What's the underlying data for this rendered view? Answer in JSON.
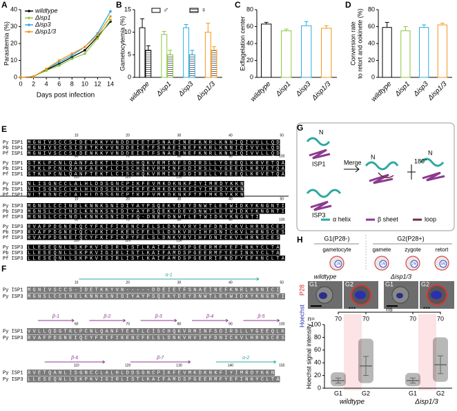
{
  "chart_data": [
    {
      "type": "line",
      "panel": "A",
      "xlabel": "Days post infection",
      "ylabel": "Parasitemia (%)",
      "x": [
        0,
        2,
        4,
        6,
        8,
        10,
        12,
        14
      ],
      "xlim": [
        0,
        14
      ],
      "xticks": [
        0,
        2,
        4,
        6,
        8,
        10,
        12,
        14
      ],
      "ylim": [
        0,
        40
      ],
      "yticks": [
        0,
        10,
        20,
        30,
        40
      ],
      "legend": "upper-left",
      "series": [
        {
          "name": "wildtype",
          "color": "#000000",
          "values": [
            0,
            0.5,
            4.5,
            8,
            12,
            16,
            24,
            33
          ]
        },
        {
          "name": "Δisp1",
          "color": "#8cc63f",
          "values": [
            0,
            0.5,
            4,
            7,
            11,
            14,
            23,
            34
          ]
        },
        {
          "name": "Δisp3",
          "color": "#29abe2",
          "values": [
            0,
            0.5,
            5,
            9,
            13,
            18,
            26,
            39
          ]
        },
        {
          "name": "Δisp1/3",
          "color": "#f7941d",
          "values": [
            0,
            0.5,
            5,
            10,
            14,
            18,
            25,
            36
          ]
        }
      ]
    },
    {
      "type": "bar",
      "panel": "B",
      "ylabel": "Gametocytemia (%)",
      "categories": [
        "wildtype",
        "Δisp1",
        "Δisp3",
        "Δisp1/3"
      ],
      "category_colors": [
        "#000000",
        "#8cc63f",
        "#29abe2",
        "#f7941d"
      ],
      "ylim": [
        0,
        15
      ],
      "yticks": [
        0,
        5,
        10,
        15
      ],
      "series": [
        {
          "name": "♂",
          "values": [
            11,
            9.5,
            11,
            10
          ],
          "errors": [
            2,
            0.7,
            0.7,
            2
          ]
        },
        {
          "name": "♀",
          "values": [
            6,
            5,
            5,
            6
          ],
          "errors": [
            1,
            1,
            1,
            0.8
          ],
          "hatch": true
        }
      ]
    },
    {
      "type": "bar",
      "panel": "C",
      "ylabel": "Exflagelation center",
      "categories": [
        "wildtype",
        "Δisp1",
        "Δisp3",
        "Δisp1/3"
      ],
      "category_colors": [
        "#000000",
        "#8cc63f",
        "#29abe2",
        "#f7941d"
      ],
      "ylim": [
        0,
        80
      ],
      "yticks": [
        0,
        20,
        40,
        60,
        80
      ],
      "values": [
        63,
        55,
        61,
        58
      ],
      "errors": [
        2,
        2,
        5,
        3
      ]
    },
    {
      "type": "bar",
      "panel": "D",
      "ylabel": [
        "Conversion rate",
        "to retort and ookinete (%)"
      ],
      "categories": [
        "wildtype",
        "Δisp1",
        "Δisp3",
        "Δisp1/3"
      ],
      "category_colors": [
        "#000000",
        "#8cc63f",
        "#29abe2",
        "#f7941d"
      ],
      "ylim": [
        0,
        80
      ],
      "yticks": [
        0,
        20,
        40,
        60,
        80
      ],
      "values": [
        59,
        55,
        59,
        62
      ],
      "errors": [
        6,
        5,
        3,
        2
      ]
    },
    {
      "type": "dot",
      "ylabel": "Hoechst signal intensity",
      "categories": [
        "G1",
        "G2",
        "G1",
        "G2"
      ],
      "groups": [
        "wildtype",
        "Δisp1/3"
      ],
      "n_label": "n=",
      "n": [
        70,
        70,
        70,
        70
      ],
      "values": [
        12,
        35,
        12,
        37
      ],
      "errors": [
        4,
        15,
        4,
        14
      ],
      "ranges": [
        [
          3,
          25
        ],
        [
          8,
          78
        ],
        [
          3,
          24
        ],
        [
          10,
          80
        ]
      ],
      "ylim": [
        0,
        100
      ],
      "yticks": [
        0,
        20,
        40,
        60,
        80,
        100
      ],
      "comparisons": [
        "***",
        "ns",
        "***"
      ]
    }
  ],
  "alignment_E": {
    "panel": "E",
    "blocks": [
      {
        "ruler": [
          10,
          20,
          30,
          40,
          50
        ],
        "rows": [
          {
            "name": "Py ISP1",
            "seq": "MGNIVSCCSIDETKKYVNDDEIETFSNAEINEFKNRLKNNIQIVVLLQD"
          },
          {
            "name": "Pb ISP1",
            "seq": "MGNIVSCCSIDETKKYVNDDEIETFSNAEINEFKKRLKNNIQIVVLLQD"
          },
          {
            "name": "Pf ISP1",
            "seq": "MGNIVSCCSIDENKKYVNDDEIETFSNAEINEFKNRLKNNIQIVVLLQD"
          }
        ]
      },
      {
        "ruler": [
          60,
          70,
          80,
          90,
          100
        ],
        "rows": [
          {
            "name": "Py ISP1",
            "seq": "GTKLPCNLQANFAEKTLCISCHQKVRMINFSDIRSLLYGEEQLKRVETQA"
          },
          {
            "name": "Pb ISP1",
            "seq": "GTKLPCNLQANFAEKTLCISCHQKVRMINFSDIRSLLYGEEQLKRVETQA"
          },
          {
            "name": "Pf ISP1",
            "seq": "GTKLPCNLQANFTEKTLCISCHQKVRMINFSDIRSLLYGEEQLKRVETQA"
          }
        ]
      },
      {
        "ruler": [
          110,
          120,
          130
        ],
        "rows": [
          {
            "name": "Py ISP1",
            "seq": "NLISGNCCLALHLDDSGNCPIKFEVMKDKNKFIYIMRDYKKN"
          },
          {
            "name": "Pb ISP1",
            "seq": "NLISGNCCLALHLDDSGNCPIKFEAMKDKNKFIYIMRDYKKN"
          },
          {
            "name": "Pf ISP1",
            "seq": "NLINDNCCLALHLDDSGNCPIKFEVMKDKNKFIFIMKDYKKN"
          }
        ]
      },
      {
        "ruler": [
          10,
          20,
          30,
          40,
          50
        ],
        "rows": [
          {
            "name": "Py ISP3",
            "seq": "MGNSLCCINDLKNNKSNIDIYAYPSQEKYDEYDNWTLETWIDKYKNGNTI"
          },
          {
            "name": "Pb ISP3",
            "seq": "MGNSLCCINDLKNNKSNIDIYAYPSQEKYDEYDNWTLETWIDKYKNGNTI"
          },
          {
            "name": "Pf ISP3",
            "seq": "MGNSLCCINDLKNNKSNIDIFQ-DNEYDNWTLETWIDKYKNGNTI"
          }
        ]
      },
      {
        "ruler": [
          60,
          70,
          80,
          90,
          100
        ],
        "rows": [
          {
            "name": "Py ISP3",
            "seq": "RVAFPDGNEIQCYFKIFIKENCFELSLDNKVRVIHFDNICKVLHRNSCES"
          },
          {
            "name": "Pb ISP3",
            "seq": "RVAFPDGNEIQCYFKIFIKENCFELSLDNKVRVIHFDNICKVLHRNSCES"
          },
          {
            "name": "Pf ISP3",
            "seq": "RVAFPDGNEIQCYFKIFIKEYFELSLDNKVRVIHFDNICKVLHRNSCES"
          }
        ]
      },
      {
        "ruler": [
          110,
          120,
          130
        ],
        "rows": [
          {
            "name": "Py ISP3",
            "seq": "LLESEQNLLSKPKVIGIRLISTLKAIFAMDSPGEERMFYEFINKYCLTA"
          },
          {
            "name": "Pb ISP3",
            "seq": "LLESEQNLLSKPKVIGIRLISTLKAIFAMDSPGEERMFYEFINKYCLTA"
          },
          {
            "name": "Pf ISP3",
            "seq": "LLESEQNLLSKPKVIGIRLISTLKAIFAMDSPGEERIFNDFYEFKNCLTA"
          }
        ]
      }
    ]
  },
  "alignment_F": {
    "panel": "F",
    "blocks": [
      {
        "ss": [
          "α-1"
        ],
        "ruler": [
          10,
          20,
          30,
          40,
          50
        ],
        "rows": [
          {
            "name": "Py ISP1",
            "seq": "MGNIVSCCS-IDETKKYVN-----DDEIETFSNAEINEFKNRLKNNICI"
          },
          {
            "name": "Py ISP3",
            "seq": "MGNSLCCINDLKNNKSNIDIYAYPSQEKYDEYDNWTLETWIDKYKNGNTI"
          }
        ]
      },
      {
        "ss": [
          "β-1",
          "β-2",
          "β-3",
          "β-4",
          "β-5"
        ],
        "ruler": [
          60,
          70,
          80,
          90,
          100
        ],
        "rows": [
          {
            "name": "Py ISP1",
            "seq": "VVLLQDGTKLPCNLQANFTEKTLCISCHQKVRMINFSDIRSLLYGEEQLK"
          },
          {
            "name": "Py ISP3",
            "seq": "RVAFPDGNEIQCYFKIFIKENCFELSLDNKVRVIHFDNICKVLHRNSCES"
          }
        ]
      },
      {
        "ss": [
          "β-6",
          "β-7",
          "α-2"
        ],
        "ruler": [
          110,
          120,
          130,
          140,
          150
        ],
        "rows": [
          {
            "name": "Py ISP1",
            "seq": "RVETQANLISGNCCLALHLDDSGNCPIKFEVMKDKNKFIYIMRDYKKN"
          },
          {
            "name": "Py ISP3",
            "seq": "LLESEQNLLSKPKVIGIRLISTLKAIFAMDSPGEERMFYEFINKYCLTA"
          }
        ]
      }
    ]
  },
  "structure_G": {
    "panel": "G",
    "n_terminus": "N",
    "isp1": "ISP1",
    "isp3": "ISP3",
    "merge": "Merge",
    "rotation": "180°",
    "legend": [
      "α helix",
      "β sheet",
      "loop"
    ]
  },
  "panel_H": {
    "panel": "H",
    "stage_g1": "G1(P28-)",
    "stage_g2": "G2(P28+)",
    "cells": [
      {
        "name": "gametocyte",
        "ploidy": "1N"
      },
      {
        "name": "gamete",
        "ploidy": "1N"
      },
      {
        "name": "zygote",
        "ploidy": "2N"
      },
      {
        "name": "retort",
        "ploidy": "4N"
      }
    ],
    "micrograph_groups": [
      "wildtype",
      "Δisp1/3"
    ],
    "micrograph_labels": [
      "G1",
      "G2",
      "G1",
      "G2"
    ],
    "channel_p28": "P28",
    "channel_hoechst": "Hoechst"
  }
}
